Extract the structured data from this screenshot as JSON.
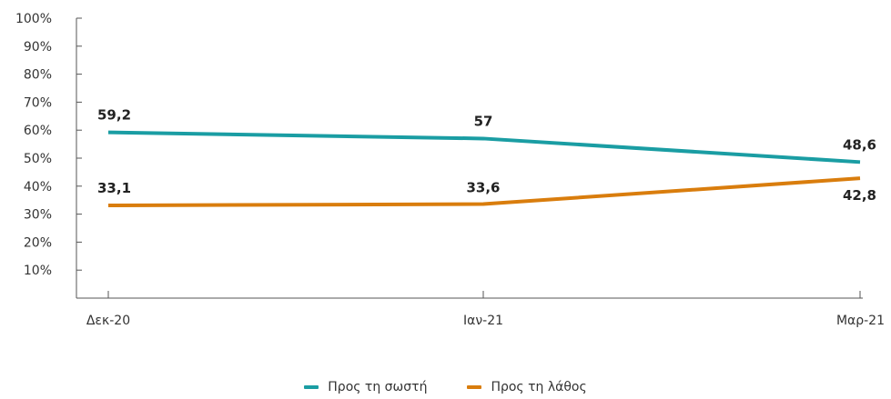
{
  "chart_data": {
    "type": "line",
    "categories": [
      "Δεκ-20",
      "Ιαν-21",
      "Μαρ-21"
    ],
    "series": [
      {
        "name": "Προς τη σωστή",
        "color": "#1a9da3",
        "values": [
          59.2,
          57,
          48.6
        ],
        "labels": [
          "59,2",
          "57",
          "48,6"
        ]
      },
      {
        "name": "Προς τη λάθος",
        "color": "#d97d0d",
        "values": [
          33.1,
          33.6,
          42.8
        ],
        "labels": [
          "33,1",
          "33,6",
          "42,8"
        ]
      }
    ],
    "y_ticks": [
      "10%",
      "20%",
      "30%",
      "40%",
      "50%",
      "60%",
      "70%",
      "80%",
      "90%",
      "100%"
    ],
    "ylim": [
      0,
      100
    ],
    "grid": false,
    "legend_position": "bottom"
  }
}
